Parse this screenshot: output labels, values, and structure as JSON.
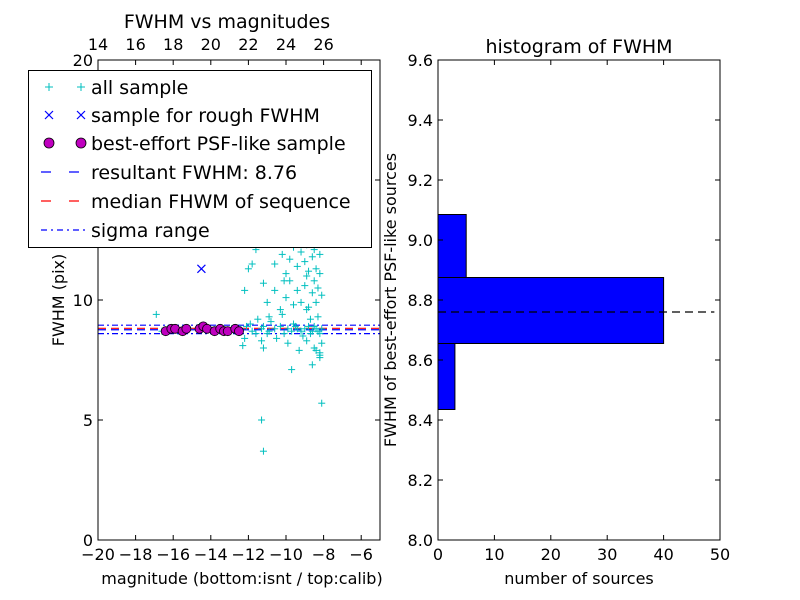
{
  "chart_data": [
    {
      "type": "scatter",
      "title": "FWHM vs magnitudes",
      "xlabel": "magnitude (bottom:isnt / top:calib)",
      "ylabel": "FWHM (pix)",
      "xlim": [
        -20,
        -5
      ],
      "ylim": [
        0,
        20
      ],
      "xticks": [
        "−20",
        "−18",
        "−16",
        "−14",
        "−12",
        "−10",
        "−8",
        "−6"
      ],
      "xtick_values": [
        -20,
        -18,
        -16,
        -14,
        -12,
        -10,
        -8,
        -6
      ],
      "yticks": [
        "0",
        "5",
        "10",
        "15",
        "20"
      ],
      "ytick_values": [
        0,
        5,
        10,
        15,
        20
      ],
      "top_xticks": [
        "14",
        "16",
        "18",
        "20",
        "22",
        "24",
        "26"
      ],
      "top_offset": 34,
      "grid": false,
      "colors": {
        "all": "#00bfbf",
        "rough": "#0000ff",
        "best": "#bf00bf",
        "resultant": "#0000ff",
        "median": "#ff0000",
        "sigma": "#0000ff"
      },
      "legend": {
        "placement": "upper-left",
        "entries": [
          {
            "label": "all sample",
            "marker": "plus",
            "color": "#00bfbf"
          },
          {
            "label": "sample for rough FWHM",
            "marker": "x",
            "color": "#0000ff"
          },
          {
            "label": "best-effort PSF-like sample",
            "marker": "circle",
            "color": "#bf00bf"
          },
          {
            "label": "resultant FWHM: 8.76",
            "marker": "dashed",
            "color": "#0000ff"
          },
          {
            "label": "median FHWM of sequence",
            "marker": "dashed",
            "color": "#ff0000"
          },
          {
            "label": "sigma range",
            "marker": "dashdot",
            "color": "#0000ff"
          }
        ]
      },
      "resultant_fwhm": 8.76,
      "median_fwhm": 8.82,
      "sigma_range": [
        8.6,
        8.95
      ],
      "series": [
        {
          "name": "all sample",
          "x": [
            -16.6,
            -16.3,
            -16.0,
            -15.7,
            -15.2,
            -14.6,
            -14.3,
            -13.6,
            -13.2,
            -12.9,
            -12.7,
            -12.4,
            -12.1,
            -11.8,
            -11.6,
            -11.3,
            -11.2,
            -10.9,
            -10.6,
            -10.3,
            -10.1,
            -9.9,
            -9.7,
            -9.5,
            -9.4,
            -9.2,
            -9.0,
            -8.8,
            -8.7,
            -8.6,
            -8.5,
            -8.4,
            -8.3,
            -8.2,
            -8.1,
            -12.3,
            -12.2,
            -11.9,
            -11.5,
            -11.2,
            -11.3,
            -11.0,
            -10.8,
            -10.5,
            -10.2,
            -9.9,
            -9.6,
            -9.3,
            -9.1,
            -8.9,
            -8.7,
            -8.5,
            -8.3,
            -8.2,
            -8.1,
            -11.0,
            -10.6,
            -10.3,
            -10.0,
            -9.8,
            -9.6,
            -9.4,
            -9.2,
            -9.0,
            -8.9,
            -8.8,
            -8.6,
            -8.5,
            -8.4,
            -8.3,
            -8.2,
            -8.1,
            -10.6,
            -10.2,
            -10.0,
            -9.8,
            -9.6,
            -9.4,
            -9.2,
            -9.0,
            -8.9,
            -8.8,
            -8.7,
            -8.6,
            -8.5,
            -8.4,
            -8.3,
            -8.2,
            -10.4,
            -10.1,
            -9.8,
            -9.6,
            -9.4,
            -9.2,
            -9.0,
            -8.8,
            -8.7,
            -8.6,
            -8.5,
            -8.4,
            -8.3,
            -8.2,
            -8.1,
            -10.0,
            -9.7,
            -9.5,
            -9.2,
            -9.0,
            -8.8,
            -8.6,
            -8.5,
            -8.4,
            -8.3,
            -8.2,
            -9.9,
            -9.6,
            -9.3,
            -9.1,
            -8.9,
            -8.7,
            -8.6,
            -8.4,
            -8.3,
            -8.2,
            -9.4,
            -9.1,
            -8.9,
            -8.7,
            -8.5,
            -8.3,
            -8.2,
            -9.2,
            -9.0,
            -8.8,
            -8.6,
            -8.4,
            -8.3,
            -8.2,
            -9.0,
            -8.8,
            -8.6,
            -8.4,
            -8.3,
            -8.2,
            -11.3,
            -11.2,
            -9.7,
            -8.1,
            -8.2,
            -8.6,
            -8.4,
            -8.2,
            -16.9,
            -11.8,
            -10.1,
            -8.9,
            -12.2,
            -12.0,
            -11.6,
            -11.2,
            -10.9
          ],
          "y": [
            8.7,
            8.8,
            8.8,
            8.7,
            8.8,
            8.9,
            8.8,
            8.8,
            8.7,
            8.8,
            8.7,
            8.8,
            8.9,
            8.7,
            8.6,
            8.8,
            8.9,
            8.7,
            8.8,
            8.9,
            8.6,
            8.8,
            8.7,
            8.9,
            8.8,
            8.7,
            8.8,
            8.9,
            8.6,
            8.7,
            8.9,
            8.8,
            8.7,
            8.6,
            8.8,
            8.1,
            8.4,
            9.0,
            9.2,
            8.0,
            8.3,
            8.6,
            9.1,
            8.4,
            9.4,
            8.2,
            9.0,
            7.9,
            8.5,
            8.3,
            9.2,
            8.0,
            9.3,
            7.7,
            8.2,
            9.9,
            10.4,
            9.6,
            10.1,
            10.8,
            9.8,
            10.4,
            9.9,
            10.6,
            11.0,
            9.7,
            10.3,
            10.8,
            9.9,
            10.5,
            11.1,
            10.2,
            11.5,
            11.9,
            11.1,
            11.7,
            12.2,
            11.4,
            12.0,
            11.6,
            12.3,
            11.2,
            12.5,
            11.8,
            12.1,
            11.3,
            12.6,
            11.9,
            13.0,
            12.7,
            13.2,
            12.6,
            13.0,
            12.4,
            13.3,
            12.8,
            13.5,
            12.9,
            13.1,
            13.6,
            12.7,
            13.4,
            12.9,
            14.0,
            14.2,
            13.8,
            14.5,
            14.1,
            13.7,
            14.3,
            13.9,
            14.6,
            14.0,
            14.4,
            15.0,
            15.2,
            14.9,
            15.4,
            15.1,
            14.8,
            15.3,
            15.5,
            15.0,
            15.2,
            16.0,
            16.3,
            15.8,
            16.2,
            16.5,
            15.9,
            16.1,
            16.8,
            17.0,
            16.6,
            17.2,
            16.9,
            17.1,
            16.7,
            17.8,
            18.1,
            17.6,
            18.0,
            18.3,
            17.9,
            5.0,
            3.7,
            7.1,
            5.7,
            7.6,
            7.3,
            7.9,
            7.8,
            9.4,
            11.5,
            10.8,
            9.6,
            10.4,
            11.3,
            12.1,
            10.7,
            9.3
          ]
        },
        {
          "name": "sample for rough FWHM",
          "x": [
            -14.5
          ],
          "y": [
            11.3
          ]
        },
        {
          "name": "best-effort PSF-like sample",
          "x": [
            -16.4,
            -16.1,
            -15.9,
            -15.5,
            -15.3,
            -14.6,
            -14.4,
            -14.2,
            -13.8,
            -13.5,
            -13.3,
            -13.1,
            -12.7,
            -12.5
          ],
          "y": [
            8.7,
            8.8,
            8.8,
            8.7,
            8.8,
            8.8,
            8.9,
            8.8,
            8.7,
            8.8,
            8.7,
            8.7,
            8.8,
            8.7
          ]
        }
      ]
    },
    {
      "type": "bar",
      "orientation": "horizontal",
      "title": "histogram of FWHM",
      "xlabel": "number of sources",
      "ylabel": "FWHM of best-effort PSF-like sources",
      "xlim": [
        0,
        50
      ],
      "ylim": [
        8.0,
        9.6
      ],
      "xticks": [
        "0",
        "10",
        "20",
        "30",
        "40",
        "50"
      ],
      "xtick_values": [
        0,
        10,
        20,
        30,
        40,
        50
      ],
      "yticks": [
        "8.0",
        "8.2",
        "8.4",
        "8.6",
        "8.8",
        "9.0",
        "9.2",
        "9.4",
        "9.6"
      ],
      "ytick_values": [
        8.0,
        8.2,
        8.4,
        8.6,
        8.8,
        9.0,
        9.2,
        9.4,
        9.6
      ],
      "grid": false,
      "bar_color": "#0000ff",
      "bins": [
        {
          "low": 8.435,
          "high": 8.655,
          "count": 3
        },
        {
          "low": 8.655,
          "high": 8.875,
          "count": 40
        },
        {
          "low": 8.875,
          "high": 9.085,
          "count": 5
        }
      ],
      "reference_line": {
        "value": 8.76,
        "style": "dashed",
        "color": "#000000"
      }
    }
  ]
}
